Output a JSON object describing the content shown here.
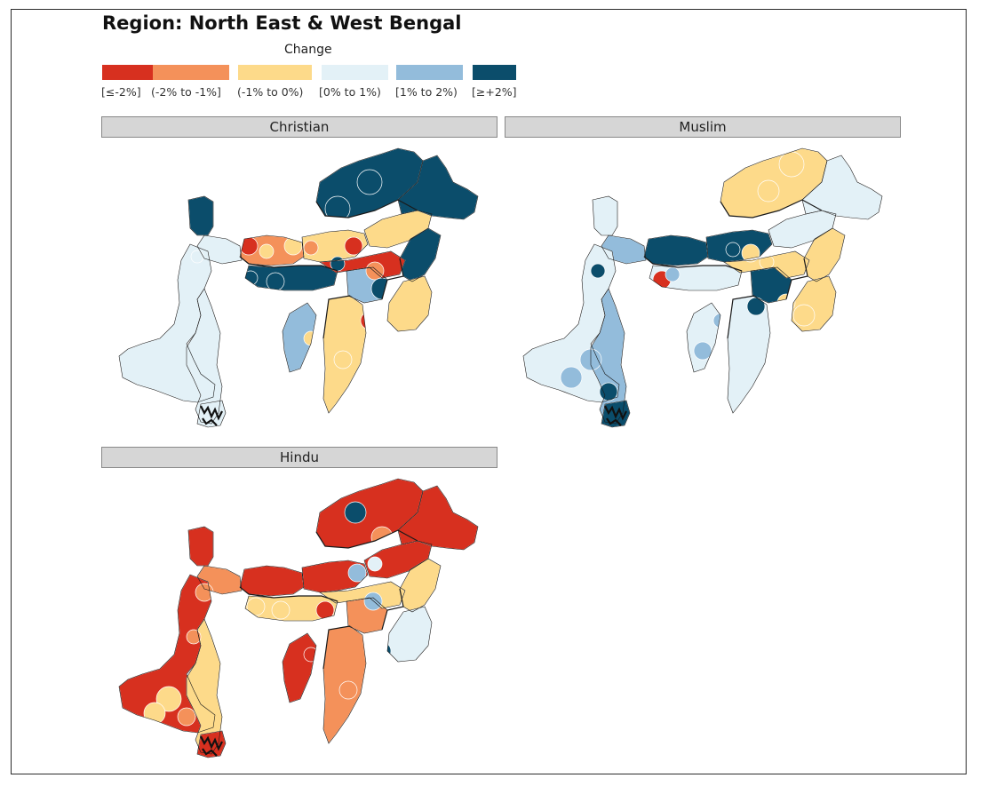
{
  "title": "Region: North East & West Bengal",
  "legend": {
    "title": "Change",
    "items": [
      {
        "label": "[≤-2%]",
        "color": "#d7301f"
      },
      {
        "label": "(-2% to -1%]",
        "color": "#f4915a"
      },
      {
        "label": "(-1% to 0%)",
        "color": "#fdda8a"
      },
      {
        "label": "[0% to 1%)",
        "color": "#e3f1f7"
      },
      {
        "label": "[1% to 2%)",
        "color": "#93bcdb"
      },
      {
        "label": "[≥+2%]",
        "color": "#0b4d6b"
      }
    ]
  },
  "panels": [
    {
      "label": "Christian"
    },
    {
      "label": "Muslim"
    },
    {
      "label": "Hindu"
    }
  ]
}
